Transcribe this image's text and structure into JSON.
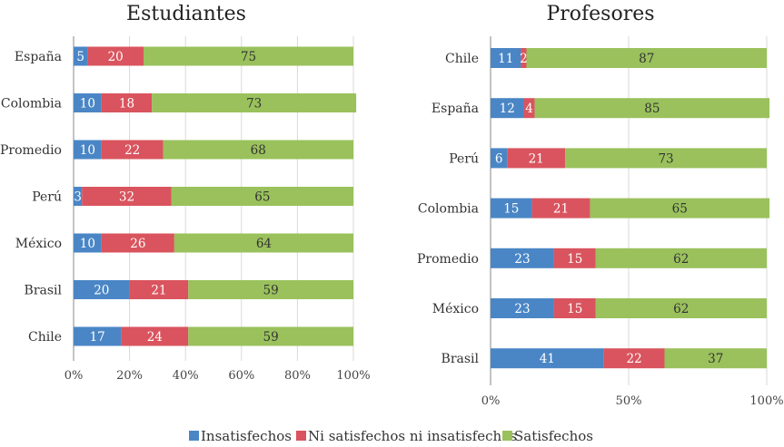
{
  "chart_data": [
    {
      "type": "bar",
      "orientation": "horizontal",
      "stacked": true,
      "title": "Estudiantes",
      "categories": [
        "España",
        "Colombia",
        "Promedio",
        "Perú",
        "México",
        "Brasil",
        "Chile"
      ],
      "series": [
        {
          "name": "Insatisfechos",
          "values": [
            5,
            10,
            10,
            3,
            10,
            20,
            17
          ]
        },
        {
          "name": "Ni satisfechos ni insatisfechos",
          "values": [
            20,
            18,
            22,
            32,
            26,
            21,
            24
          ]
        },
        {
          "name": "Satisfechos",
          "values": [
            75,
            73,
            68,
            65,
            64,
            59,
            59
          ]
        }
      ],
      "xlim": [
        0,
        100
      ],
      "xticks": [
        "0%",
        "20%",
        "40%",
        "60%",
        "80%",
        "100%"
      ],
      "grid": true
    },
    {
      "type": "bar",
      "orientation": "horizontal",
      "stacked": true,
      "title": "Profesores",
      "categories": [
        "Chile",
        "España",
        "Perú",
        "Colombia",
        "Promedio",
        "México",
        "Brasil"
      ],
      "series": [
        {
          "name": "Insatisfechos",
          "values": [
            11,
            12,
            6,
            15,
            23,
            23,
            41
          ]
        },
        {
          "name": "Ni satisfechos ni insatisfechos",
          "values": [
            2,
            4,
            21,
            21,
            15,
            15,
            22
          ]
        },
        {
          "name": "Satisfechos",
          "values": [
            87,
            85,
            73,
            65,
            62,
            62,
            37
          ]
        }
      ],
      "hidden_labels": [
        "",
        "",
        "",
        "",
        "",
        "",
        ""
      ],
      "xlim": [
        0,
        100
      ],
      "xticks": [
        "0%",
        "50%",
        "100%"
      ],
      "grid": true
    }
  ],
  "legend": {
    "position": "bottom",
    "items": [
      {
        "label": "Insatisfechos",
        "color": "#4a86c5"
      },
      {
        "label": "Ni satisfechos ni insatisfechos",
        "color": "#d9545e"
      },
      {
        "label": "Satisfechos",
        "color": "#9ac15c"
      }
    ]
  },
  "colors": {
    "series": [
      "#4a86c5",
      "#d9545e",
      "#9ac15c"
    ],
    "label_text": [
      "#ffffff",
      "#ffffff",
      "#333333"
    ],
    "grid": "#d9d9d9",
    "axis": "#888888"
  }
}
